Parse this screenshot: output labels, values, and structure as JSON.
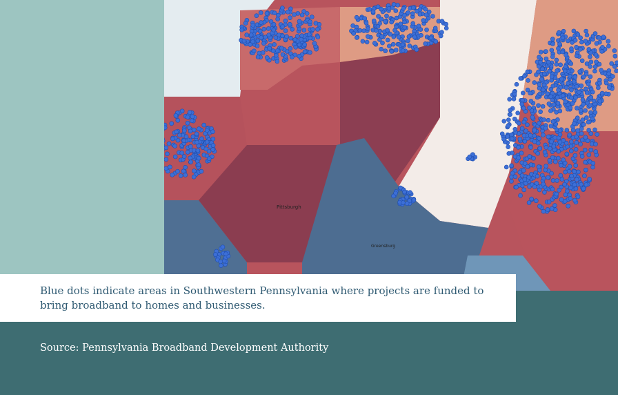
{
  "map": {
    "labels": [
      "Pittsburgh",
      "Greensburg"
    ]
  },
  "caption": "Blue dots indicate areas in Southwestern Pennsylvania where projects are funded to bring broadband to homes and businesses.",
  "source": "Source: Pennsylvania Broadband Development Authority"
}
